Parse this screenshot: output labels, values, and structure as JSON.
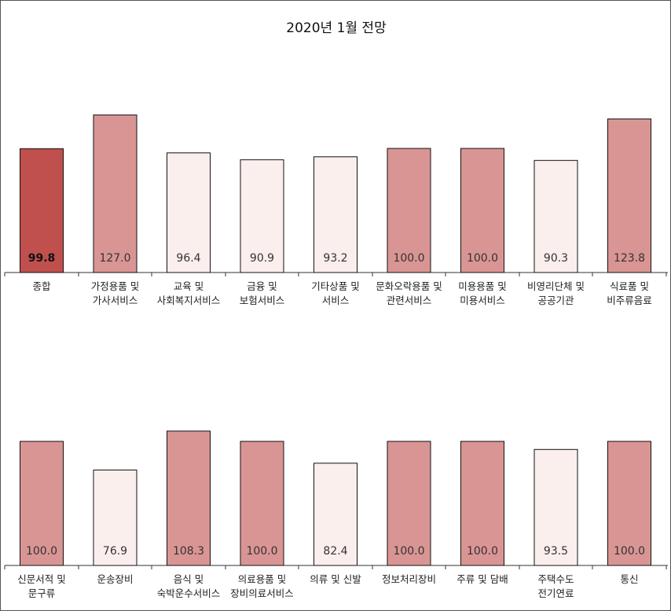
{
  "colors": {
    "main": "#c0504d",
    "high": "#d99594",
    "low": "#fbefee",
    "stroke": "#111111",
    "axis": "#333333"
  },
  "chart_data": {
    "type": "bar",
    "title": "2020년 1월 전망",
    "xlabel": "",
    "ylabel": "",
    "ylim": [
      0,
      130
    ],
    "grid": false,
    "panels": [
      {
        "categories": [
          [
            "종합"
          ],
          [
            "가정용품 및",
            "가사서비스"
          ],
          [
            "교육 및",
            "사회복지서비스"
          ],
          [
            "금융 및",
            "보험서비스"
          ],
          [
            "기타상품 및",
            "서비스"
          ],
          [
            "문화오락용품 및",
            "관련서비스"
          ],
          [
            "미용용품 및",
            "미용서비스"
          ],
          [
            "비영리단체 및",
            "공공기관"
          ],
          [
            "식료품 및",
            "비주류음료"
          ]
        ],
        "values": [
          99.8,
          127.0,
          96.4,
          90.9,
          93.2,
          100.0,
          100.0,
          90.3,
          123.8
        ],
        "labels": [
          "99.8",
          "127.0",
          "96.4",
          "90.9",
          "93.2",
          "100.0",
          "100.0",
          "90.3",
          "123.8"
        ],
        "tones": [
          "main",
          "high",
          "low",
          "low",
          "low",
          "high",
          "high",
          "low",
          "high"
        ]
      },
      {
        "categories": [
          [
            "신문서적 및",
            "문구류"
          ],
          [
            "운송장비"
          ],
          [
            "음식 및",
            "숙박운수서비스"
          ],
          [
            "의료용품 및",
            "장비의료서비스"
          ],
          [
            "의류 및 신발"
          ],
          [
            "정보처리장비"
          ],
          [
            "주류 및 담배"
          ],
          [
            "주택수도",
            "전기연료"
          ],
          [
            "통신"
          ]
        ],
        "values": [
          100.0,
          76.9,
          108.3,
          100.0,
          82.4,
          100.0,
          100.0,
          93.5,
          100.0
        ],
        "labels": [
          "100.0",
          "76.9",
          "108.3",
          "100.0",
          "82.4",
          "100.0",
          "100.0",
          "93.5",
          "100.0"
        ],
        "tones": [
          "high",
          "low",
          "high",
          "high",
          "low",
          "high",
          "high",
          "low",
          "high"
        ]
      }
    ]
  }
}
